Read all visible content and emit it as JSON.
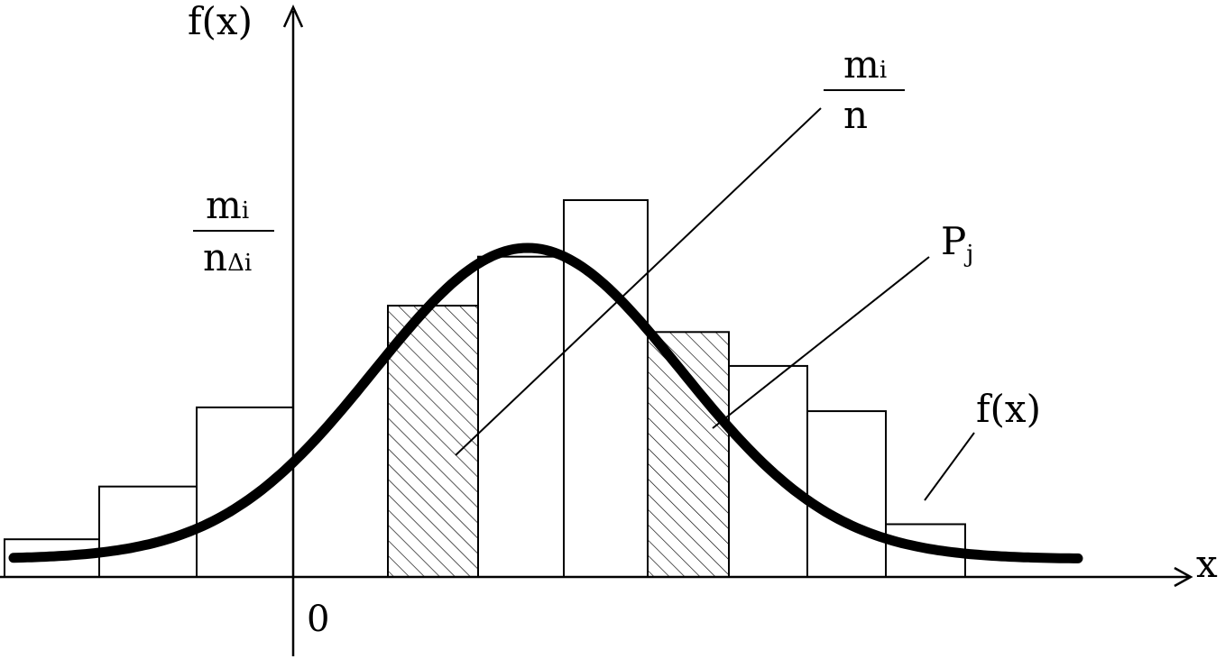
{
  "axes": {
    "y_label": "f(x)",
    "x_label": "x",
    "origin_label": "0"
  },
  "labels": {
    "relative_frequency_numerator": "m",
    "relative_frequency_numerator_sub": "i",
    "relative_frequency_denominator": "n",
    "density_numerator": "m",
    "density_numerator_sub": "i",
    "density_denominator": "n",
    "density_denominator_sub": "Δi",
    "probability": "P",
    "probability_sub": "j",
    "curve_label": "f(x)"
  },
  "histogram": {
    "bars": [
      {
        "level": 0.1,
        "hatched": false
      },
      {
        "level": 0.24,
        "hatched": false
      },
      {
        "level": 0.45,
        "hatched": false
      },
      {
        "level": 0.0,
        "hatched": false
      },
      {
        "level": 0.72,
        "hatched": true
      },
      {
        "level": 0.85,
        "hatched": false
      },
      {
        "level": 1.0,
        "hatched": false
      },
      {
        "level": 0.65,
        "hatched": true
      },
      {
        "level": 0.56,
        "hatched": false
      },
      {
        "level": 0.44,
        "hatched": false
      },
      {
        "level": 0.14,
        "hatched": false
      }
    ]
  },
  "colors": {
    "ink": "#000000",
    "background": "#ffffff"
  }
}
